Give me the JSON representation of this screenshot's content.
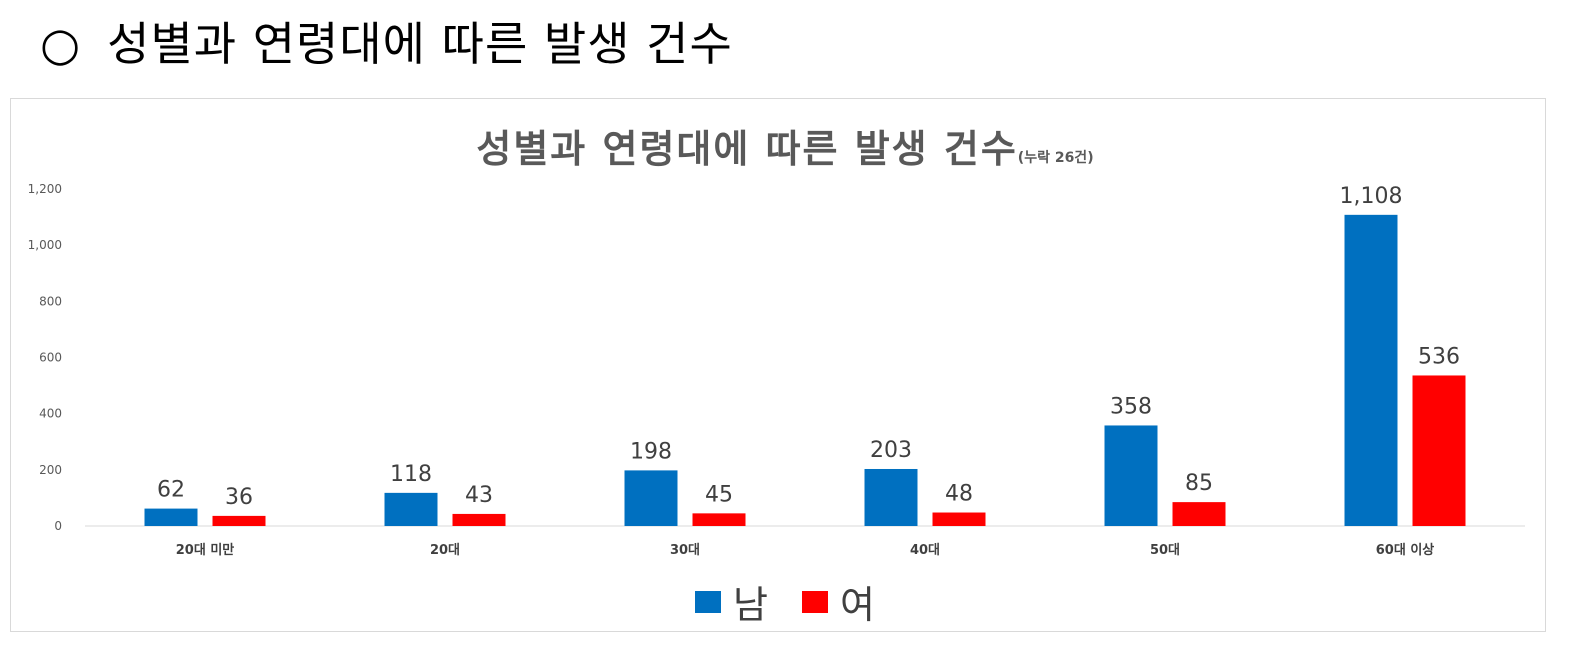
{
  "heading": {
    "bullet": "○",
    "text": "성별과 연령대에 따른 발생 건수"
  },
  "chart_data": {
    "type": "bar",
    "title": "성별과 연령대에 따른 발생 건수",
    "subtitle": "(누락 26건)",
    "categories": [
      "20대 미만",
      "20대",
      "30대",
      "40대",
      "50대",
      "60대 이상"
    ],
    "series": [
      {
        "name": "남",
        "color": "#0070c0",
        "values": [
          62,
          118,
          198,
          203,
          358,
          1108
        ],
        "labels": [
          "62",
          "118",
          "198",
          "203",
          "358",
          "1,108"
        ]
      },
      {
        "name": "여",
        "color": "#ff0000",
        "values": [
          36,
          43,
          45,
          48,
          85,
          536
        ],
        "labels": [
          "36",
          "43",
          "45",
          "48",
          "85",
          "536"
        ]
      }
    ],
    "y_ticks": [
      0,
      200,
      400,
      600,
      800,
      1000,
      1200
    ],
    "y_tick_labels": [
      "0",
      "200",
      "400",
      "600",
      "800",
      "1,000",
      "1,200"
    ],
    "ylim": [
      0,
      1200
    ],
    "grid": false,
    "legend_position": "bottom"
  }
}
